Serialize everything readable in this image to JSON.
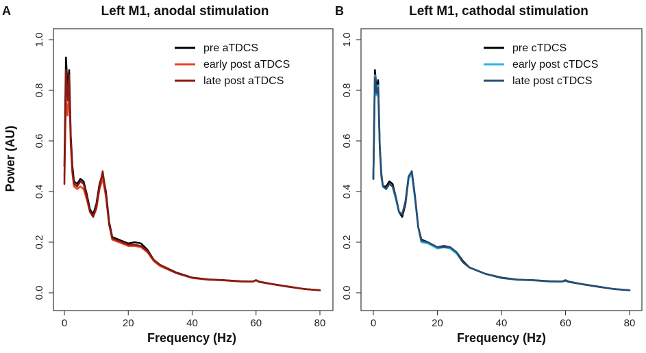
{
  "ylabel": "Power (AU)",
  "chart_data": [
    {
      "type": "line",
      "panel": "A",
      "title": "Left M1, anodal stimulation",
      "xlabel": "Frequency (Hz)",
      "ylabel": "Power (AU)",
      "xlim": [
        0,
        80
      ],
      "ylim": [
        0,
        1.0
      ],
      "xticks": [
        0,
        20,
        40,
        60,
        80
      ],
      "yticks": [
        0.0,
        0.2,
        0.4,
        0.6,
        0.8,
        1.0
      ],
      "x": [
        0,
        0.5,
        1,
        1.5,
        2,
        2.5,
        3,
        4,
        5,
        6,
        7,
        8,
        9,
        10,
        11,
        12,
        13,
        14,
        15,
        17,
        20,
        22,
        24,
        26,
        28,
        30,
        35,
        40,
        45,
        50,
        55,
        59,
        60,
        61,
        65,
        70,
        75,
        80
      ],
      "legend": "top-right",
      "series": [
        {
          "name": "pre aTDCS",
          "color": "#000000",
          "values": [
            0.5,
            0.93,
            0.8,
            0.88,
            0.62,
            0.5,
            0.44,
            0.43,
            0.45,
            0.44,
            0.39,
            0.33,
            0.31,
            0.35,
            0.43,
            0.47,
            0.4,
            0.28,
            0.22,
            0.21,
            0.195,
            0.2,
            0.195,
            0.17,
            0.13,
            0.11,
            0.08,
            0.06,
            0.053,
            0.05,
            0.046,
            0.045,
            0.05,
            0.044,
            0.035,
            0.025,
            0.015,
            0.01
          ]
        },
        {
          "name": "early post aTDCS",
          "color": "#e8452a",
          "values": [
            0.46,
            0.76,
            0.7,
            0.81,
            0.58,
            0.47,
            0.42,
            0.41,
            0.42,
            0.41,
            0.37,
            0.32,
            0.3,
            0.33,
            0.41,
            0.45,
            0.38,
            0.27,
            0.21,
            0.2,
            0.185,
            0.185,
            0.18,
            0.16,
            0.125,
            0.105,
            0.078,
            0.058,
            0.052,
            0.049,
            0.045,
            0.044,
            0.049,
            0.043,
            0.034,
            0.024,
            0.015,
            0.01
          ]
        },
        {
          "name": "late post aTDCS",
          "color": "#8b1a12",
          "values": [
            0.43,
            0.88,
            0.76,
            0.86,
            0.6,
            0.48,
            0.43,
            0.42,
            0.44,
            0.43,
            0.38,
            0.32,
            0.3,
            0.34,
            0.42,
            0.48,
            0.39,
            0.27,
            0.215,
            0.205,
            0.19,
            0.19,
            0.185,
            0.165,
            0.13,
            0.11,
            0.078,
            0.06,
            0.052,
            0.05,
            0.045,
            0.044,
            0.05,
            0.043,
            0.034,
            0.024,
            0.015,
            0.01
          ]
        }
      ]
    },
    {
      "type": "line",
      "panel": "B",
      "title": "Left M1, cathodal stimulation",
      "xlabel": "Frequency (Hz)",
      "ylabel": "",
      "xlim": [
        0,
        80
      ],
      "ylim": [
        0,
        1.0
      ],
      "xticks": [
        0,
        20,
        40,
        60,
        80
      ],
      "yticks": [
        0.0,
        0.2,
        0.4,
        0.6,
        0.8,
        1.0
      ],
      "x": [
        0,
        0.5,
        1,
        1.5,
        2,
        2.5,
        3,
        4,
        5,
        6,
        7,
        8,
        9,
        10,
        11,
        12,
        13,
        14,
        15,
        17,
        20,
        22,
        24,
        26,
        28,
        30,
        35,
        40,
        45,
        50,
        55,
        59,
        60,
        61,
        65,
        70,
        75,
        80
      ],
      "legend": "top-right",
      "series": [
        {
          "name": "pre cTDCS",
          "color": "#000000",
          "values": [
            0.45,
            0.88,
            0.8,
            0.84,
            0.58,
            0.47,
            0.42,
            0.42,
            0.44,
            0.43,
            0.38,
            0.32,
            0.3,
            0.35,
            0.45,
            0.48,
            0.38,
            0.26,
            0.21,
            0.2,
            0.18,
            0.185,
            0.18,
            0.16,
            0.125,
            0.1,
            0.075,
            0.06,
            0.052,
            0.05,
            0.046,
            0.045,
            0.05,
            0.044,
            0.035,
            0.025,
            0.015,
            0.01
          ]
        },
        {
          "name": "early post cTDCS",
          "color": "#29b6e8",
          "values": [
            0.46,
            0.86,
            0.78,
            0.82,
            0.57,
            0.46,
            0.42,
            0.41,
            0.43,
            0.42,
            0.37,
            0.32,
            0.31,
            0.36,
            0.45,
            0.47,
            0.37,
            0.26,
            0.2,
            0.195,
            0.175,
            0.18,
            0.175,
            0.155,
            0.12,
            0.1,
            0.075,
            0.058,
            0.051,
            0.049,
            0.045,
            0.044,
            0.047,
            0.043,
            0.034,
            0.024,
            0.015,
            0.01
          ]
        },
        {
          "name": "late post cTDCS",
          "color": "#2b4d73",
          "values": [
            0.45,
            0.85,
            0.79,
            0.81,
            0.57,
            0.46,
            0.42,
            0.41,
            0.43,
            0.42,
            0.38,
            0.32,
            0.31,
            0.36,
            0.46,
            0.48,
            0.38,
            0.26,
            0.205,
            0.2,
            0.18,
            0.18,
            0.18,
            0.16,
            0.12,
            0.1,
            0.075,
            0.059,
            0.052,
            0.05,
            0.045,
            0.044,
            0.049,
            0.043,
            0.034,
            0.024,
            0.015,
            0.01
          ]
        }
      ]
    }
  ]
}
